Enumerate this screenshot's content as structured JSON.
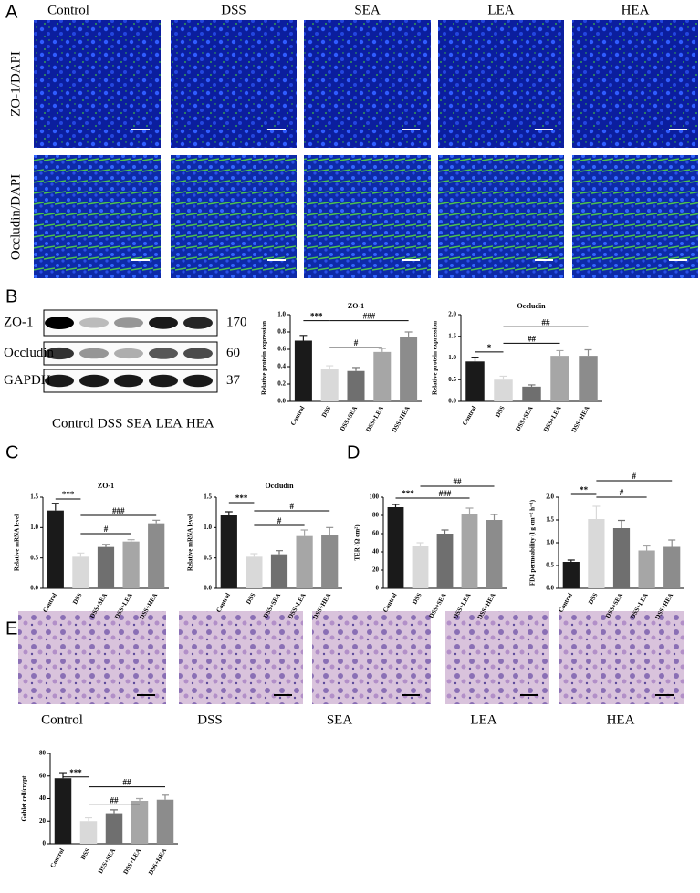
{
  "panel_labels": [
    "A",
    "B",
    "C",
    "D",
    "E"
  ],
  "immunofluorescence": {
    "columns": [
      "Control",
      "DSS",
      "SEA",
      "LEA",
      "HEA"
    ],
    "rows": [
      "ZO-1/DAPI",
      "Occludin/DAPI"
    ]
  },
  "western_blot": {
    "proteins": [
      "ZO-1",
      "Occludin",
      "GAPDH"
    ],
    "kda": [
      "170",
      "60",
      "37"
    ],
    "lanes": [
      "Control",
      "DSS",
      "SEA",
      "LEA",
      "HEA"
    ]
  },
  "histology": {
    "columns": [
      "Control",
      "DSS",
      "SEA",
      "LEA",
      "HEA"
    ]
  },
  "chart_data": [
    {
      "type": "bar",
      "title": "ZO-1",
      "ylabel": "Relative protein expression",
      "categories": [
        "Control",
        "DSS",
        "DSS+SEA",
        "DSS+LEA",
        "DSS+HEA"
      ],
      "values": [
        0.7,
        0.37,
        0.35,
        0.57,
        0.74
      ],
      "errors": [
        0.06,
        0.04,
        0.04,
        0.04,
        0.06
      ],
      "colors": [
        "#1a1a1a",
        "#d9d9d9",
        "#6f6f6f",
        "#a6a6a6",
        "#8c8c8c"
      ],
      "ylim": [
        0,
        1.0
      ],
      "yticks": [
        {
          "value": 0,
          "label": "0.0"
        },
        0.2,
        0.4,
        0.6,
        0.8,
        {
          "value": 1.0,
          "label": "1.0"
        }
      ],
      "annotations": [
        "***",
        "###",
        "#"
      ]
    },
    {
      "type": "bar",
      "title": "Occludin",
      "ylabel": "Relative protein expression",
      "categories": [
        "Control",
        "DSS",
        "DSS+SEA",
        "DSS+LEA",
        "DSS+HEA"
      ],
      "values": [
        0.92,
        0.5,
        0.34,
        1.05,
        1.05
      ],
      "errors": [
        0.1,
        0.08,
        0.04,
        0.12,
        0.14
      ],
      "colors": [
        "#1a1a1a",
        "#d9d9d9",
        "#6f6f6f",
        "#a6a6a6",
        "#8c8c8c"
      ],
      "ylim": [
        0,
        2.0
      ],
      "yticks": [
        {
          "value": 0,
          "label": "0.0"
        },
        0.5,
        {
          "value": 1.0,
          "label": "1.0"
        },
        1.5,
        {
          "value": 2.0,
          "label": "2.0"
        }
      ],
      "annotations": [
        "*",
        "##",
        "##"
      ]
    },
    {
      "type": "bar",
      "title": "ZO-1",
      "ylabel": "Relative mRNA level",
      "categories": [
        "Control",
        "DSS",
        "DSS+SEA",
        "DSS+LEA",
        "DSS+HEA"
      ],
      "values": [
        1.28,
        0.52,
        0.68,
        0.77,
        1.07
      ],
      "errors": [
        0.12,
        0.06,
        0.04,
        0.03,
        0.05
      ],
      "colors": [
        "#1a1a1a",
        "#d9d9d9",
        "#6f6f6f",
        "#a6a6a6",
        "#8c8c8c"
      ],
      "ylim": [
        0,
        1.5
      ],
      "yticks": [
        {
          "value": 0,
          "label": "0.0"
        },
        0.5,
        {
          "value": 1.0,
          "label": "1.0"
        },
        1.5
      ],
      "annotations": [
        "***",
        "###",
        "#"
      ]
    },
    {
      "type": "bar",
      "title": "Occludin",
      "ylabel": "Relative mRNA level",
      "categories": [
        "Control",
        "DSS",
        "DSS+SEA",
        "DSS+LEA",
        "DSS+HEA"
      ],
      "values": [
        1.2,
        0.52,
        0.56,
        0.86,
        0.88
      ],
      "errors": [
        0.06,
        0.05,
        0.06,
        0.1,
        0.12
      ],
      "colors": [
        "#1a1a1a",
        "#d9d9d9",
        "#6f6f6f",
        "#a6a6a6",
        "#8c8c8c"
      ],
      "ylim": [
        0,
        1.5
      ],
      "yticks": [
        {
          "value": 0,
          "label": "0.0"
        },
        0.5,
        {
          "value": 1.0,
          "label": "1.0"
        },
        1.5
      ],
      "annotations": [
        "***",
        "#",
        "#"
      ]
    },
    {
      "type": "bar",
      "ylabel": "TER (Ω cm²)",
      "categories": [
        "Control",
        "DSS",
        "DSS+SEA",
        "DSS+LEA",
        "DSS+HEA"
      ],
      "values": [
        89,
        46,
        60,
        81,
        75
      ],
      "errors": [
        3,
        4,
        4,
        7,
        6
      ],
      "colors": [
        "#1a1a1a",
        "#d9d9d9",
        "#6f6f6f",
        "#a6a6a6",
        "#8c8c8c"
      ],
      "ylim": [
        0,
        100
      ],
      "yticks": [
        0,
        20,
        40,
        60,
        80,
        100
      ],
      "annotations": [
        "***",
        "##",
        "###"
      ]
    },
    {
      "type": "bar",
      "ylabel": "FD4 permeability (l g cm⁻² h⁻¹)",
      "categories": [
        "Control",
        "DSS",
        "DSS+SEA",
        "DSS+LEA",
        "DSS+HEA"
      ],
      "values": [
        0.58,
        1.52,
        1.32,
        0.83,
        0.91
      ],
      "errors": [
        0.04,
        0.28,
        0.17,
        0.1,
        0.15
      ],
      "colors": [
        "#1a1a1a",
        "#d9d9d9",
        "#6f6f6f",
        "#a6a6a6",
        "#8c8c8c"
      ],
      "ylim": [
        0,
        2.0
      ],
      "yticks": [
        {
          "value": 0,
          "label": "0.0"
        },
        0.5,
        {
          "value": 1.0,
          "label": "1.0"
        },
        1.5,
        {
          "value": 2.0,
          "label": "2.0"
        }
      ],
      "annotations": [
        "**",
        "#",
        "#"
      ]
    },
    {
      "type": "bar",
      "ylabel": "Goblet cell/crypt",
      "categories": [
        "Control",
        "DSS",
        "DSS+SEA",
        "DSS+LEA",
        "DSS+HEA"
      ],
      "values": [
        58,
        20,
        27,
        38,
        39
      ],
      "errors": [
        5,
        3,
        3,
        2,
        4
      ],
      "colors": [
        "#1a1a1a",
        "#d9d9d9",
        "#6f6f6f",
        "#a6a6a6",
        "#8c8c8c"
      ],
      "ylim": [
        0,
        80
      ],
      "yticks": [
        0,
        20,
        40,
        60,
        80
      ],
      "annotations": [
        "***",
        "##",
        "##"
      ]
    }
  ]
}
